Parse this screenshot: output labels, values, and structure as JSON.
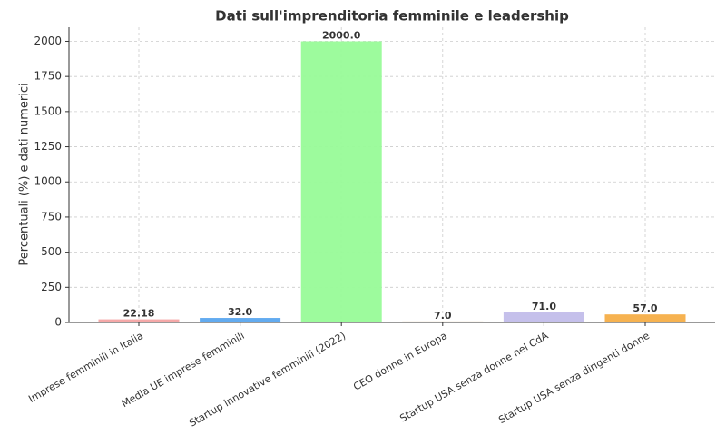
{
  "chart_data": {
    "type": "bar",
    "title": "Dati sull'imprenditoria femminile e leadership",
    "y_label": "Percentuali (%) e dati numerici",
    "categories": [
      "Imprese femminili in Italia",
      "Media UE imprese femminili",
      "Startup innovative femminili (2022)",
      "CEO donne in Europa",
      "Startup USA senza donne nel CdA",
      "Startup USA senza dirigenti donne"
    ],
    "values": [
      22.18,
      32,
      2000,
      7,
      71,
      57
    ],
    "value_labels": [
      "22.18",
      "32.0",
      "2000.0",
      "7.0",
      "71.0",
      "57.0"
    ],
    "colors": [
      "#f4a3a3",
      "#5aa7ef",
      "#98fb98",
      "#d9a35c",
      "#c2bdea",
      "#f5ae47"
    ],
    "ylim": [
      0,
      2100
    ],
    "yticks": [
      0,
      250,
      500,
      750,
      1000,
      1250,
      1500,
      1750,
      2000
    ],
    "grid": true
  }
}
